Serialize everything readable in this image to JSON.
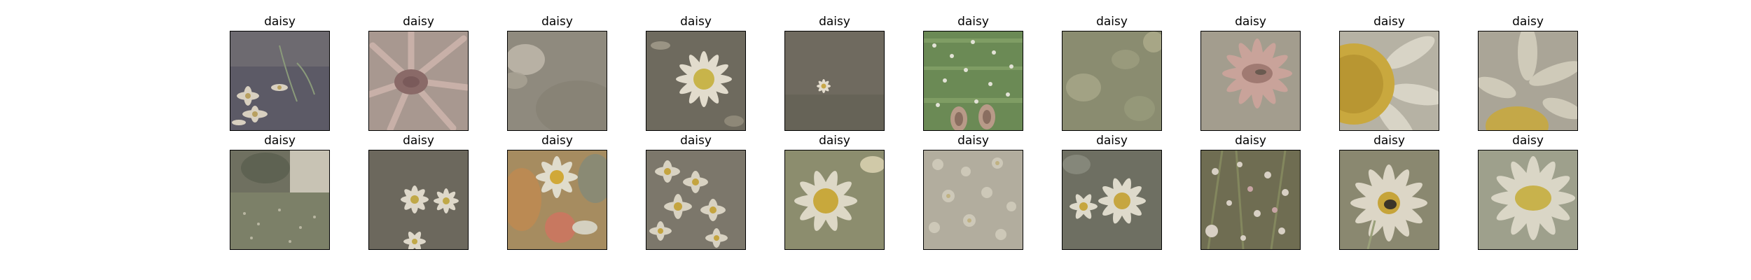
{
  "grid": {
    "rows": 2,
    "columns": 10,
    "images": [
      {
        "label": "daisy",
        "subject": "daisies on purple background with stems"
      },
      {
        "label": "daisy",
        "subject": "pink gerbera close-up"
      },
      {
        "label": "daisy",
        "subject": "blurred white petal on grey"
      },
      {
        "label": "daisy",
        "subject": "single white daisy on dark background"
      },
      {
        "label": "daisy",
        "subject": "tiny daisy on dark ground"
      },
      {
        "label": "daisy",
        "subject": "grass with small daisies and shoes"
      },
      {
        "label": "daisy",
        "subject": "blurred greenish meadow"
      },
      {
        "label": "daisy",
        "subject": "pink gerbera on beige"
      },
      {
        "label": "daisy",
        "subject": "large yellow daisy centre close-up"
      },
      {
        "label": "daisy",
        "subject": "daisy petals and partial yellow centre"
      },
      {
        "label": "daisy",
        "subject": "shrubs and white wall"
      },
      {
        "label": "daisy",
        "subject": "two daisies on dark grey"
      },
      {
        "label": "daisy",
        "subject": "daisy bouquet with orange fruit"
      },
      {
        "label": "daisy",
        "subject": "cluster of daisies"
      },
      {
        "label": "daisy",
        "subject": "daisy close-up on green"
      },
      {
        "label": "daisy",
        "subject": "pale daisy field"
      },
      {
        "label": "daisy",
        "subject": "two daisies on dark background"
      },
      {
        "label": "daisy",
        "subject": "wildflowers in grass"
      },
      {
        "label": "daisy",
        "subject": "daisy with insect"
      },
      {
        "label": "daisy",
        "subject": "daisy on light green"
      }
    ]
  }
}
